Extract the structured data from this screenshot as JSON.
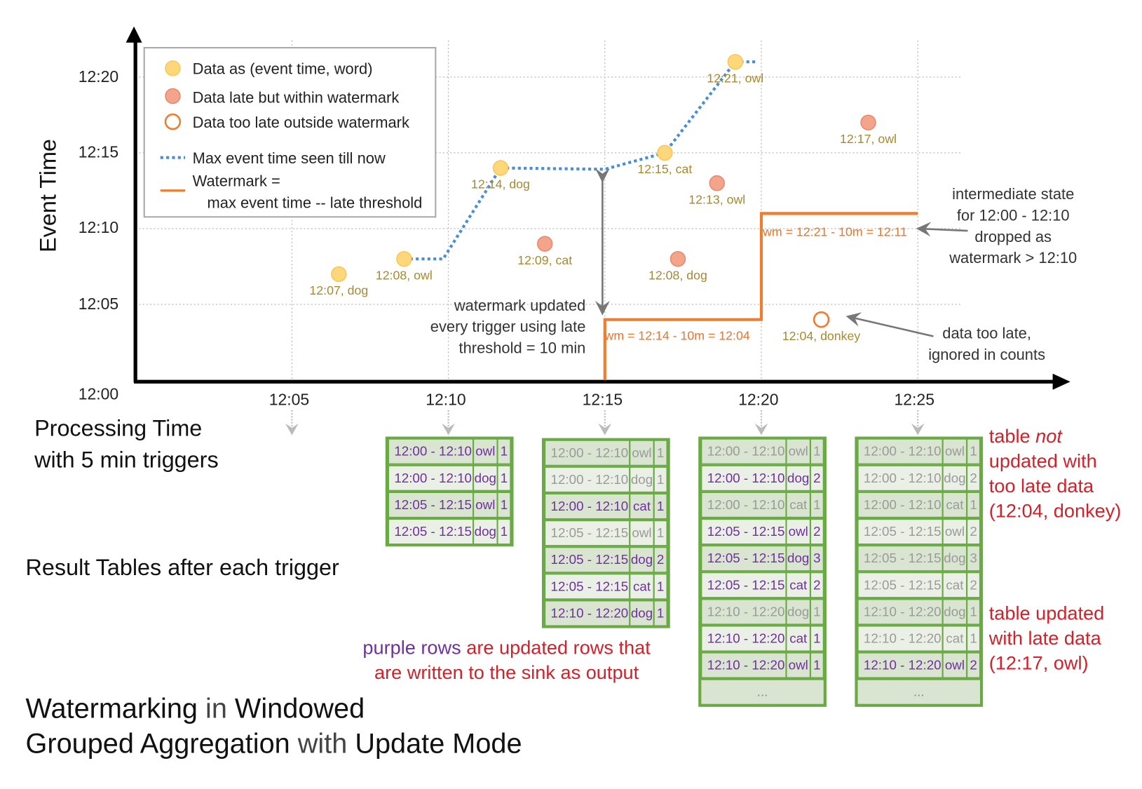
{
  "colors": {
    "on_time_point": "#fdd77a",
    "late_point": "#f4a48a",
    "watermark": "#ed7d31",
    "max_event_line": "#4a8fd6",
    "updated_row_text": "#7030a0",
    "stale_row_text": "#9a9a9a",
    "table_border": "#6aaa45",
    "annotation_red": "#d0222b",
    "point_label": "#a8892e"
  },
  "chart": {
    "y_axis_label": "Event Time",
    "x_axis_label_line1": "Processing Time",
    "x_axis_label_line2": "with 5 min triggers",
    "y_ticks": [
      "12:00",
      "12:05",
      "12:10",
      "12:15",
      "12:20"
    ],
    "x_ticks": [
      "12:05",
      "12:10",
      "12:15",
      "12:20",
      "12:25"
    ]
  },
  "legend": {
    "on_time": "Data as (event time, word)",
    "late": "Data late but within watermark",
    "too_late": "Data too late outside watermark",
    "max_line": "Max event time seen till now",
    "watermark_line1": "Watermark =",
    "watermark_line2": "max event time -- late threshold"
  },
  "chart_data": {
    "type": "scatter",
    "xlabel": "Processing Time",
    "ylabel": "Event Time",
    "xlim": [
      "12:00",
      "12:30"
    ],
    "ylim": [
      "12:00",
      "12:22"
    ],
    "points": [
      {
        "label": "12:07, dog",
        "processing": "12:06:30",
        "event": "12:07",
        "kind": "on_time"
      },
      {
        "label": "12:08, owl",
        "processing": "12:08:35",
        "event": "12:08",
        "kind": "on_time"
      },
      {
        "label": "12:14, dog",
        "processing": "12:11:40",
        "event": "12:14",
        "kind": "on_time"
      },
      {
        "label": "12:09, cat",
        "processing": "12:13:05",
        "event": "12:09",
        "kind": "late"
      },
      {
        "label": "12:15, cat",
        "processing": "12:16:55",
        "event": "12:15",
        "kind": "on_time"
      },
      {
        "label": "12:08, dog",
        "processing": "12:17:20",
        "event": "12:08",
        "kind": "late"
      },
      {
        "label": "12:13, owl",
        "processing": "12:18:35",
        "event": "12:13",
        "kind": "late"
      },
      {
        "label": "12:21, owl",
        "processing": "12:19:10",
        "event": "12:21",
        "kind": "on_time"
      },
      {
        "label": "12:04, donkey",
        "processing": "12:21:55",
        "event": "12:04",
        "kind": "too_late"
      },
      {
        "label": "12:17, owl",
        "processing": "12:23:25",
        "event": "12:17",
        "kind": "late"
      }
    ],
    "max_event_time_line": [
      [
        "12:08:35",
        "12:08"
      ],
      [
        "12:09:50",
        "12:08"
      ],
      [
        "12:11:40",
        "12:14"
      ],
      [
        "12:15:00",
        "12:13:55"
      ],
      [
        "12:16:55",
        "12:15"
      ],
      [
        "12:19:10",
        "12:21"
      ],
      [
        "12:19:50",
        "12:21"
      ]
    ],
    "watermark_line": [
      [
        "12:15",
        "12:00"
      ],
      [
        "12:15",
        "12:04"
      ],
      [
        "12:20",
        "12:04"
      ],
      [
        "12:20",
        "12:11"
      ],
      [
        "12:25",
        "12:11"
      ]
    ]
  },
  "annotations": {
    "wm1": "wm = 12:14 - 10m = 12:04",
    "wm2": "wm = 12:21 - 10m = 12:11",
    "wm_updated": [
      "watermark updated",
      "every trigger using late",
      "threshold = 10 min"
    ],
    "intermediate": [
      "intermediate state",
      "for 12:00 - 12:10",
      "dropped as",
      "watermark > 12:10"
    ],
    "too_late": [
      "data too late,",
      "ignored in counts"
    ],
    "result_tables": "Result Tables after each trigger",
    "purple_rows_a": "purple rows",
    "purple_rows_b": " are updated rows that",
    "purple_rows_c": "are written to the sink as output",
    "not_updated_1": "table ",
    "not_updated_em": "not",
    "not_updated_2": "updated with",
    "not_updated_3": "too late data",
    "not_updated_4": "(12:04, donkey)",
    "updated_1": "table updated",
    "updated_2": "with late data",
    "updated_3": "(12:17, owl)",
    "ellipsis": "..."
  },
  "title": {
    "w1": "Watermarking",
    "t1": " in ",
    "w2": "Windowed",
    "w3": "Grouped Aggregation",
    "t2": " with ",
    "w4": "Update Mode"
  },
  "tables": [
    {
      "trigger": "12:10",
      "more": false,
      "rows": [
        [
          "12:00 - 12:10",
          "owl",
          "1",
          true
        ],
        [
          "12:00 - 12:10",
          "dog",
          "1",
          true
        ],
        [
          "12:05 - 12:15",
          "owl",
          "1",
          true
        ],
        [
          "12:05 - 12:15",
          "dog",
          "1",
          true
        ]
      ]
    },
    {
      "trigger": "12:15",
      "more": false,
      "rows": [
        [
          "12:00 - 12:10",
          "owl",
          "1",
          false
        ],
        [
          "12:00 - 12:10",
          "dog",
          "1",
          false
        ],
        [
          "12:00 - 12:10",
          "cat",
          "1",
          true
        ],
        [
          "12:05 - 12:15",
          "owl",
          "1",
          false
        ],
        [
          "12:05 - 12:15",
          "dog",
          "2",
          true
        ],
        [
          "12:05 - 12:15",
          "cat",
          "1",
          true
        ],
        [
          "12:10 - 12:20",
          "dog",
          "1",
          true
        ]
      ]
    },
    {
      "trigger": "12:20",
      "more": true,
      "rows": [
        [
          "12:00 - 12:10",
          "owl",
          "1",
          false
        ],
        [
          "12:00 - 12:10",
          "dog",
          "2",
          true
        ],
        [
          "12:00 - 12:10",
          "cat",
          "1",
          false
        ],
        [
          "12:05 - 12:15",
          "owl",
          "2",
          true
        ],
        [
          "12:05 - 12:15",
          "dog",
          "3",
          true
        ],
        [
          "12:05 - 12:15",
          "cat",
          "2",
          true
        ],
        [
          "12:10 - 12:20",
          "dog",
          "1",
          false
        ],
        [
          "12:10 - 12:20",
          "cat",
          "1",
          true
        ],
        [
          "12:10 - 12:20",
          "owl",
          "1",
          true
        ]
      ]
    },
    {
      "trigger": "12:25",
      "more": true,
      "rows": [
        [
          "12:00 - 12:10",
          "owl",
          "1",
          false
        ],
        [
          "12:00 - 12:10",
          "dog",
          "2",
          false
        ],
        [
          "12:00 - 12:10",
          "cat",
          "1",
          false
        ],
        [
          "12:05 - 12:15",
          "owl",
          "2",
          false
        ],
        [
          "12:05 - 12:15",
          "dog",
          "3",
          false
        ],
        [
          "12:05 - 12:15",
          "cat",
          "2",
          false
        ],
        [
          "12:10 - 12:20",
          "dog",
          "1",
          false
        ],
        [
          "12:10 - 12:20",
          "cat",
          "1",
          false
        ],
        [
          "12:10 - 12:20",
          "owl",
          "2",
          true
        ]
      ]
    }
  ]
}
